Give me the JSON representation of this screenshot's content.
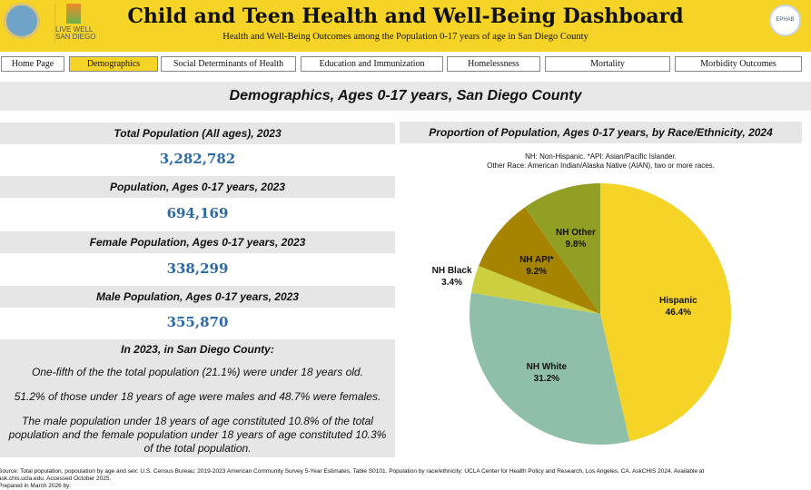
{
  "header": {
    "title": "Child and Teen Health and Well-Being Dashboard",
    "subtitle": "Health and Well-Being Outcomes among the Population 0-17 years of age in San Diego County",
    "logo_text": "LIVE WELL\nSAN DIEGO",
    "seal_text": "EPHAB"
  },
  "nav": [
    {
      "label": "Home Page"
    },
    {
      "label": "Demographics",
      "active": true
    },
    {
      "label": "Social Determinants of Health"
    },
    {
      "label": "Education and Immunization"
    },
    {
      "label": "Homelessness"
    },
    {
      "label": "Mortality"
    },
    {
      "label": "Morbidity Outcomes"
    }
  ],
  "section_title": "Demographics, Ages 0-17 years, San Diego County",
  "stats": [
    {
      "label": "Total Population (All ages), 2023",
      "value": "3,282,782"
    },
    {
      "label": "Population, Ages 0-17 years, 2023",
      "value": "694,169"
    },
    {
      "label": "Female Population, Ages 0-17 years, 2023",
      "value": "338,299"
    },
    {
      "label": "Male Population, Ages 0-17 years, 2023",
      "value": "355,870"
    }
  ],
  "summary": {
    "heading": "In 2023, in San Diego County:",
    "lines": [
      "One-fifth of the the total population (21.1%) were under 18 years old.",
      "51.2% of those under 18 years of age were males and 48.7% were females.",
      "The male population under 18 years of age constituted 10.8% of the total population and the female population under 18 years of age constituted 10.3% of the total population."
    ]
  },
  "chart_title": "Proportion of Population, Ages 0-17 years, by Race/Ethnicity, 2024",
  "chart_notes": [
    "NH: Non-Hispanic. *API: Asian/Pacific Islander.",
    "Other Race: American Indian/Alaska Native (AIAN), two or more races."
  ],
  "chart_data": {
    "type": "pie",
    "title": "Proportion of Population, Ages 0-17 years, by Race/Ethnicity, 2024",
    "start": "top, clockwise",
    "slices": [
      {
        "label": "Hispanic",
        "value": 46.4,
        "text": "46.4%",
        "color": "#F5D327"
      },
      {
        "label": "NH White",
        "value": 31.2,
        "text": "31.2%",
        "color": "#8FBFA8"
      },
      {
        "label": "NH Black",
        "value": 3.4,
        "text": "3.4%",
        "color": "#CBCF40"
      },
      {
        "label": "NH API*",
        "value": 9.2,
        "text": "9.2%",
        "color": "#A68300"
      },
      {
        "label": "NH Other",
        "value": 9.8,
        "text": "9.8%",
        "color": "#929F25"
      }
    ]
  },
  "source": [
    "Source: Total population, popoulation by age and sex: U.S. Census Bureau; 2019-2023 American Community Survey 5-Year Estimates, Table S0101. Population by race/ethnicity: UCLA Center for Health Policy and Research, Los Angeles, CA. AskCHIS 2024. Available at",
    "ask.chis.ucla.edu. Accessed October 2025.",
    "Prepared in March 2026 by:"
  ]
}
